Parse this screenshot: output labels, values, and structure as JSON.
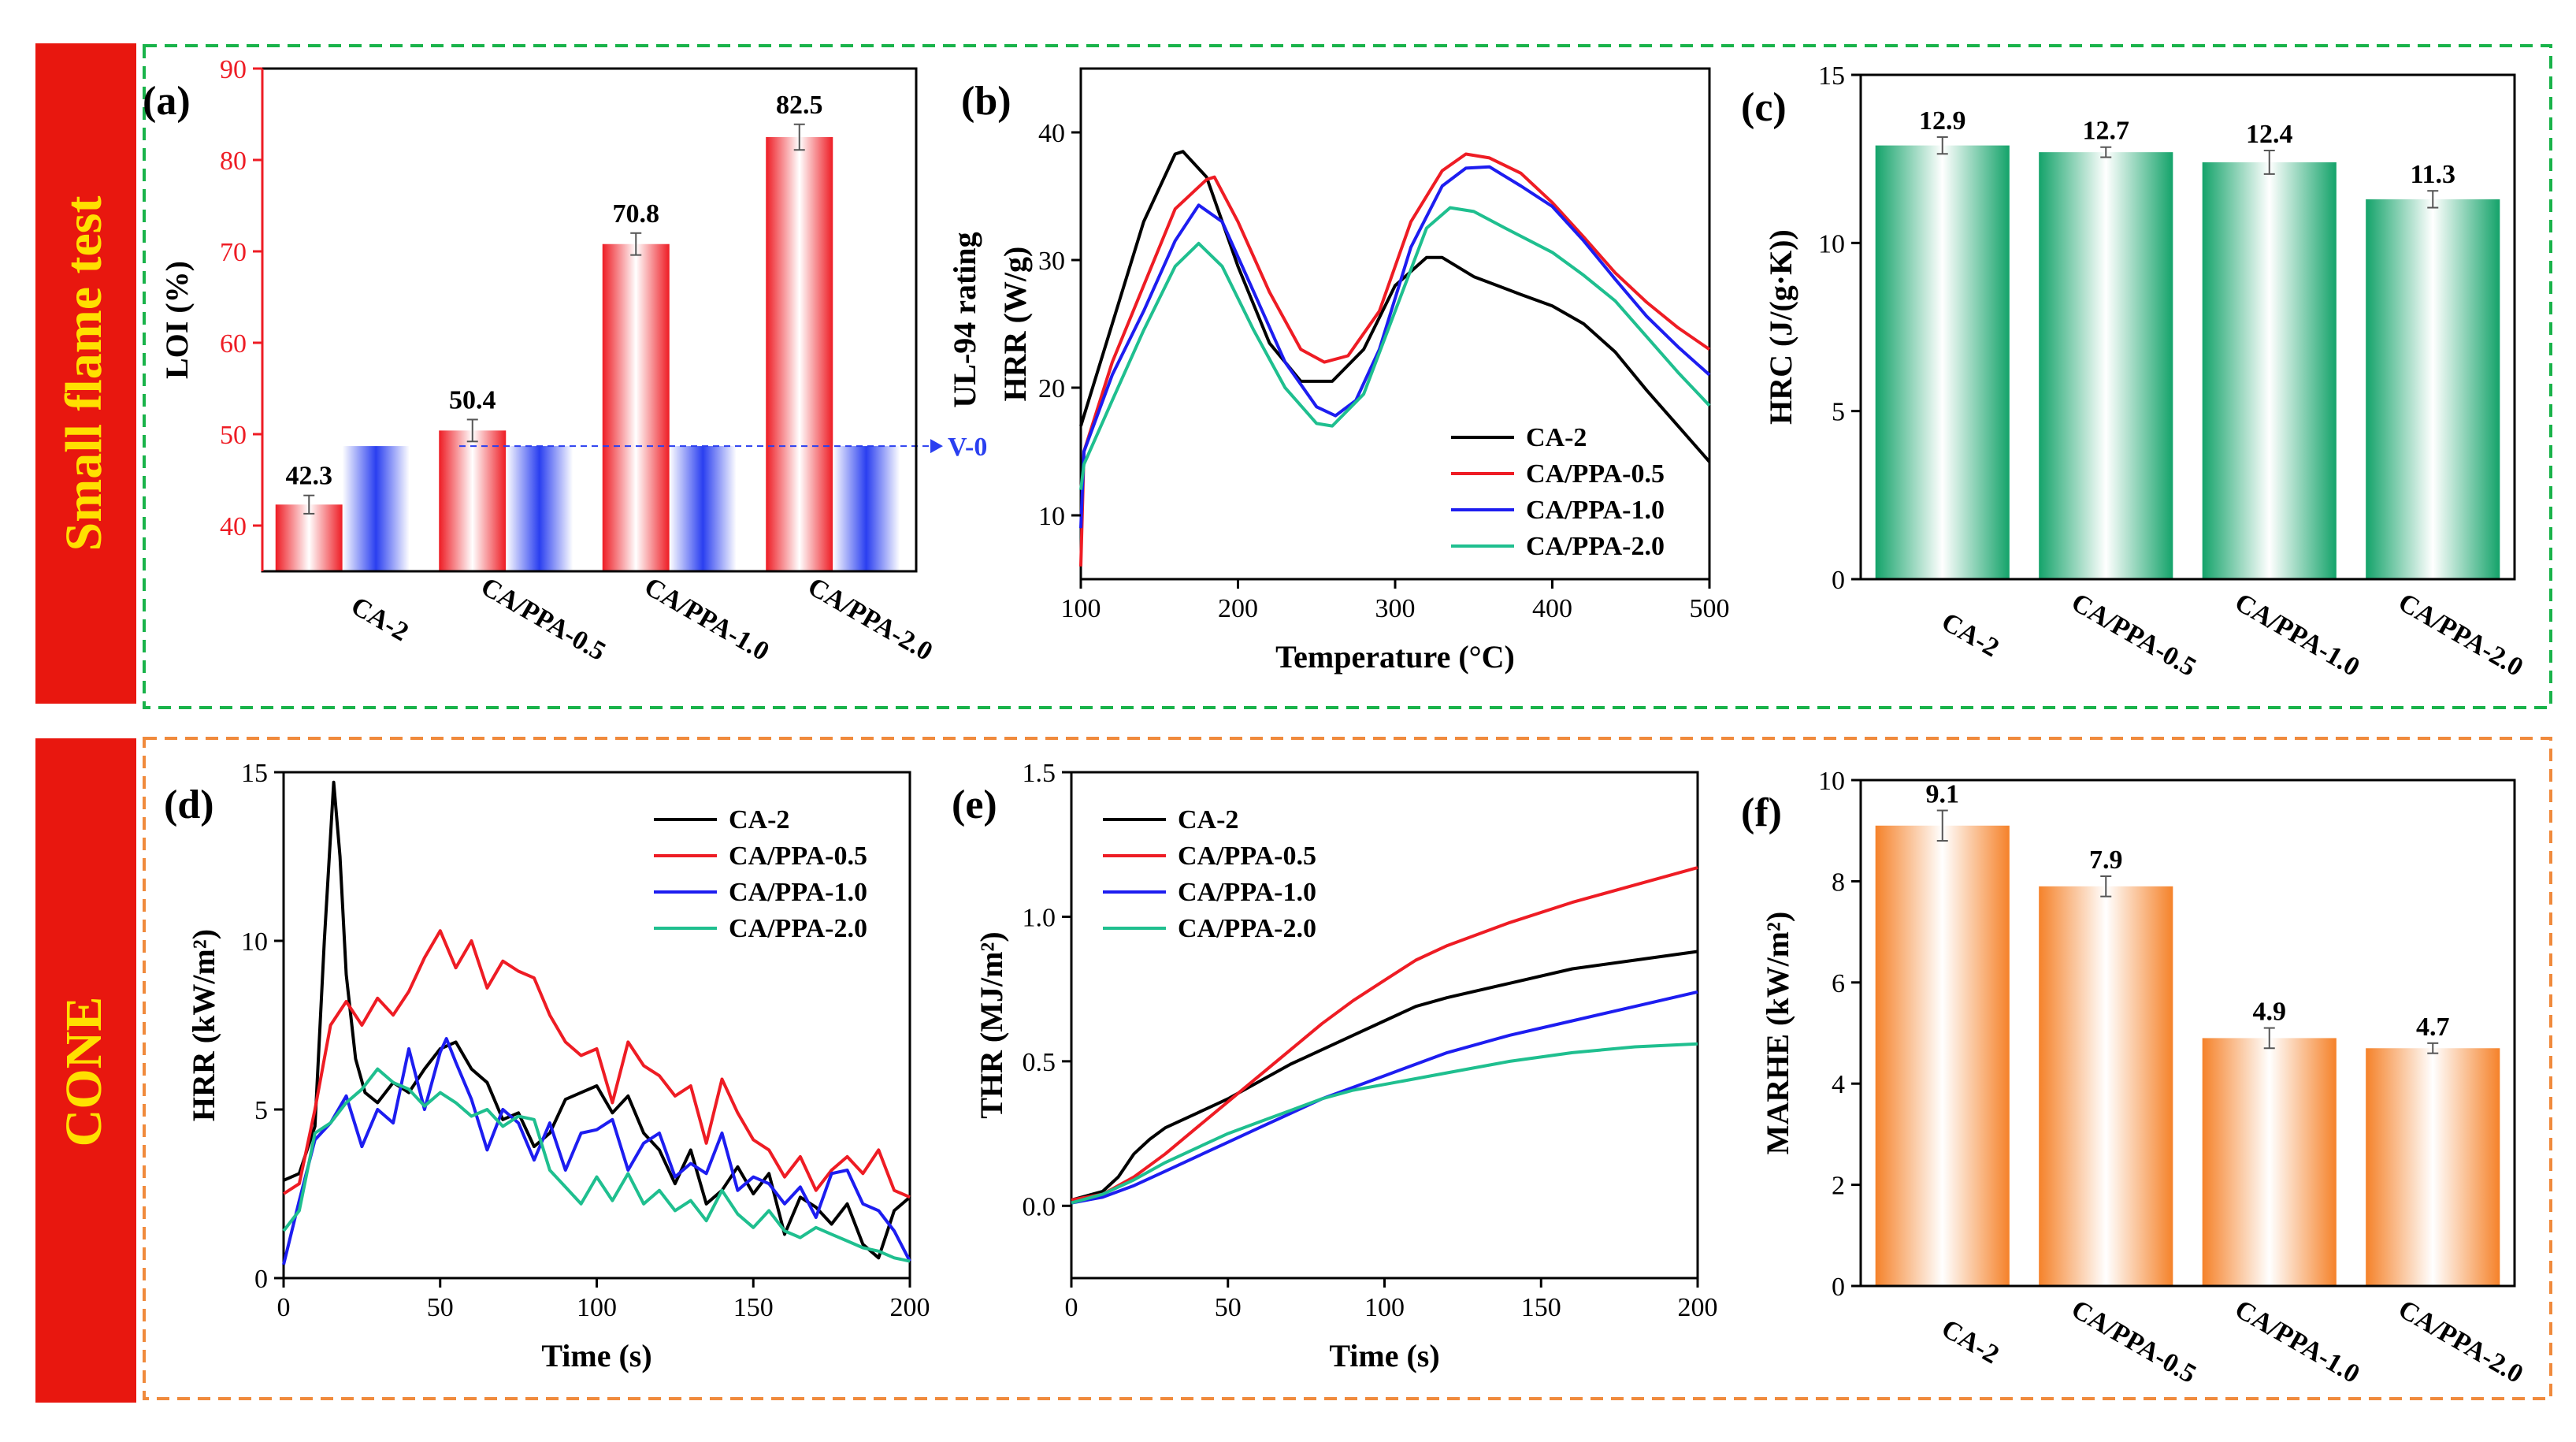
{
  "sections": [
    {
      "label": "Small flame test",
      "color": "#e8170f",
      "text_color": "#ffe000",
      "border_color": "#19b34a"
    },
    {
      "label": "CONE",
      "color": "#e8170f",
      "text_color": "#ffe000",
      "border_color": "#f08a3c"
    }
  ],
  "chart_data": [
    {
      "id": "a",
      "type": "bar",
      "panel_label": "(a)",
      "categories": [
        "CA-2",
        "CA/PPA-0.5",
        "CA/PPA-1.0",
        "CA/PPA-2.0"
      ],
      "series": [
        {
          "name": "LOI",
          "values": [
            42.3,
            50.4,
            70.8,
            82.5
          ],
          "errors": [
            1.0,
            1.2,
            1.2,
            1.4
          ],
          "color": "#ee1c24",
          "labels": [
            "42.3",
            "50.4",
            "70.8",
            "82.5"
          ]
        },
        {
          "name": "UL-94",
          "values": [
            48.7,
            48.7,
            48.7,
            48.7
          ],
          "color": "#2a3ff0"
        }
      ],
      "ylabel": "LOI (%)",
      "ylim": [
        35,
        90
      ],
      "yticks": [
        40,
        50,
        60,
        70,
        80,
        90
      ],
      "ytick_labels": [
        "40",
        "50",
        "60",
        "70",
        "80",
        "90"
      ],
      "y2label": "UL-94 rating",
      "annotation": {
        "text": "V-0",
        "value": 48.7
      },
      "axis_color": "#ee1c24"
    },
    {
      "id": "b",
      "type": "line",
      "panel_label": "(b)",
      "xlabel": "Temperature (°C)",
      "ylabel": "HRR (W/g)",
      "xlim": [
        100,
        500
      ],
      "ylim": [
        5,
        45
      ],
      "xticks": [
        100,
        200,
        300,
        400,
        500
      ],
      "xtick_labels": [
        "100",
        "200",
        "300",
        "400",
        "500"
      ],
      "yticks": [
        10,
        20,
        30,
        40
      ],
      "ytick_labels": [
        "10",
        "20",
        "30",
        "40"
      ],
      "legend_position": "bottom-right",
      "series": [
        {
          "name": "CA-2",
          "color": "#000000",
          "x": [
            100,
            120,
            140,
            160,
            165,
            180,
            200,
            220,
            240,
            260,
            280,
            300,
            320,
            330,
            350,
            380,
            400,
            420,
            440,
            460,
            480,
            500
          ],
          "y": [
            17,
            25,
            33,
            38.3,
            38.5,
            36.5,
            29.5,
            23.5,
            20.5,
            20.5,
            23,
            28,
            30.2,
            30.2,
            28.7,
            27.3,
            26.4,
            25.0,
            22.8,
            19.8,
            17.0,
            14.2
          ]
        },
        {
          "name": "CA/PPA-0.5",
          "color": "#ee1c24",
          "x": [
            100,
            102,
            120,
            140,
            160,
            180,
            185,
            200,
            220,
            240,
            255,
            270,
            290,
            310,
            330,
            345,
            360,
            380,
            400,
            420,
            440,
            460,
            480,
            500
          ],
          "y": [
            6,
            15,
            22,
            28,
            34,
            36.3,
            36.5,
            33,
            27.5,
            23,
            22.0,
            22.5,
            26,
            33,
            37,
            38.3,
            38,
            36.8,
            34.5,
            31.8,
            29.0,
            26.7,
            24.7,
            23.0
          ]
        },
        {
          "name": "CA/PPA-1.0",
          "color": "#1d1df0",
          "x": [
            100,
            102,
            120,
            140,
            160,
            175,
            190,
            210,
            230,
            250,
            262,
            275,
            290,
            310,
            330,
            345,
            360,
            380,
            400,
            420,
            440,
            460,
            480,
            500
          ],
          "y": [
            9,
            15,
            21,
            26,
            31.5,
            34.3,
            33,
            27.5,
            22,
            18.5,
            17.8,
            19,
            23,
            31,
            35.8,
            37.2,
            37.3,
            35.8,
            34.2,
            31.5,
            28.5,
            25.6,
            23.2,
            21.0
          ]
        },
        {
          "name": "CA/PPA-2.0",
          "color": "#1fbf8f",
          "x": [
            100,
            102,
            120,
            140,
            160,
            175,
            190,
            210,
            230,
            250,
            260,
            280,
            300,
            320,
            335,
            350,
            370,
            400,
            420,
            440,
            460,
            480,
            500
          ],
          "y": [
            12,
            14,
            19,
            24.5,
            29.5,
            31.3,
            29.5,
            24.5,
            20,
            17.2,
            17.0,
            19.5,
            26,
            32.5,
            34.1,
            33.8,
            32.5,
            30.6,
            28.8,
            26.8,
            24.0,
            21.2,
            18.6
          ]
        }
      ]
    },
    {
      "id": "c",
      "type": "bar",
      "panel_label": "(c)",
      "categories": [
        "CA-2",
        "CA/PPA-0.5",
        "CA/PPA-1.0",
        "CA/PPA-2.0"
      ],
      "values": [
        12.9,
        12.7,
        12.4,
        11.3
      ],
      "errors": [
        0.25,
        0.15,
        0.35,
        0.25
      ],
      "labels": [
        "12.9",
        "12.7",
        "12.4",
        "11.3"
      ],
      "ylabel": "HRC (J/(g·K))",
      "ylim": [
        0,
        15
      ],
      "yticks": [
        0,
        5,
        10,
        15
      ],
      "ytick_labels": [
        "0",
        "5",
        "10",
        "15"
      ],
      "color": "#14a36a"
    },
    {
      "id": "d",
      "type": "line",
      "panel_label": "(d)",
      "xlabel": "Time (s)",
      "ylabel": "HRR (kW/m²)",
      "xlim": [
        0,
        200
      ],
      "ylim": [
        0,
        15
      ],
      "xticks": [
        0,
        50,
        100,
        150,
        200
      ],
      "xtick_labels": [
        "0",
        "50",
        "100",
        "150",
        "200"
      ],
      "yticks": [
        0,
        5,
        10,
        15
      ],
      "ytick_labels": [
        "0",
        "5",
        "10",
        "15"
      ],
      "legend_position": "top-right",
      "series": [
        {
          "name": "CA-2",
          "color": "#000000",
          "x": [
            0,
            5,
            10,
            13,
            16,
            18,
            20,
            23,
            26,
            30,
            35,
            40,
            45,
            50,
            55,
            60,
            65,
            70,
            75,
            80,
            85,
            90,
            95,
            100,
            105,
            110,
            115,
            120,
            125,
            130,
            135,
            140,
            145,
            150,
            155,
            160,
            165,
            170,
            175,
            180,
            185,
            190,
            195,
            200
          ],
          "y": [
            2.9,
            3.1,
            4.5,
            10,
            14.7,
            12.5,
            9,
            6.5,
            5.5,
            5.2,
            5.8,
            5.5,
            6.2,
            6.8,
            7,
            6.2,
            5.8,
            4.7,
            4.9,
            3.9,
            4.3,
            5.3,
            5.5,
            5.7,
            4.9,
            5.4,
            4.3,
            3.8,
            2.8,
            3.8,
            2.2,
            2.6,
            3.3,
            2.5,
            3.1,
            1.3,
            2.4,
            2.1,
            1.6,
            2.2,
            1.0,
            0.6,
            2.0,
            2.4
          ]
        },
        {
          "name": "CA/PPA-0.5",
          "color": "#ee1c24",
          "x": [
            0,
            5,
            10,
            15,
            20,
            25,
            30,
            35,
            40,
            45,
            50,
            55,
            60,
            65,
            70,
            75,
            80,
            85,
            90,
            95,
            100,
            105,
            110,
            115,
            120,
            125,
            130,
            135,
            140,
            145,
            150,
            155,
            160,
            165,
            170,
            175,
            180,
            185,
            190,
            195,
            200
          ],
          "y": [
            2.5,
            2.8,
            5,
            7.5,
            8.2,
            7.5,
            8.3,
            7.8,
            8.5,
            9.5,
            10.3,
            9.2,
            10,
            8.6,
            9.4,
            9.1,
            8.9,
            7.8,
            7,
            6.6,
            6.8,
            5.2,
            7,
            6.3,
            6.0,
            5.4,
            5.7,
            4.0,
            5.9,
            4.9,
            4.1,
            3.8,
            3.0,
            3.6,
            2.6,
            3.2,
            3.6,
            3.1,
            3.8,
            2.6,
            2.4
          ]
        },
        {
          "name": "CA/PPA-1.0",
          "color": "#1d1df0",
          "x": [
            0,
            5,
            10,
            15,
            20,
            25,
            30,
            35,
            40,
            45,
            50,
            52,
            55,
            60,
            65,
            70,
            75,
            80,
            85,
            90,
            95,
            100,
            105,
            110,
            115,
            120,
            125,
            130,
            135,
            140,
            145,
            150,
            155,
            160,
            165,
            170,
            175,
            180,
            185,
            190,
            195,
            200
          ],
          "y": [
            0.4,
            2.3,
            4.1,
            4.6,
            5.4,
            3.9,
            5.0,
            4.6,
            6.8,
            5.0,
            6.7,
            7.1,
            6.4,
            5.3,
            3.8,
            5.0,
            4.6,
            3.5,
            4.6,
            3.2,
            4.3,
            4.4,
            4.7,
            3.2,
            4.0,
            4.3,
            3.0,
            3.4,
            3.1,
            4.3,
            2.6,
            3.0,
            2.8,
            2.2,
            2.7,
            1.8,
            3.1,
            3.2,
            2.2,
            2.0,
            1.4,
            0.5
          ]
        },
        {
          "name": "CA/PPA-2.0",
          "color": "#1fbf8f",
          "x": [
            0,
            5,
            10,
            15,
            20,
            25,
            30,
            35,
            40,
            45,
            50,
            55,
            60,
            65,
            70,
            75,
            80,
            85,
            90,
            95,
            100,
            105,
            110,
            115,
            120,
            125,
            130,
            135,
            140,
            145,
            150,
            155,
            160,
            165,
            170,
            175,
            180,
            185,
            190,
            195,
            200
          ],
          "y": [
            1.4,
            2.0,
            4.3,
            4.6,
            5.2,
            5.6,
            6.2,
            5.8,
            5.6,
            5.1,
            5.5,
            5.2,
            4.8,
            5.0,
            4.5,
            4.8,
            4.7,
            3.2,
            2.7,
            2.2,
            3.0,
            2.3,
            3.1,
            2.2,
            2.6,
            2.0,
            2.3,
            1.7,
            2.6,
            1.9,
            1.5,
            2.0,
            1.4,
            1.2,
            1.5,
            1.3,
            1.1,
            0.9,
            0.8,
            0.6,
            0.5
          ]
        }
      ]
    },
    {
      "id": "e",
      "type": "line",
      "panel_label": "(e)",
      "xlabel": "Time (s)",
      "ylabel": "THR (MJ/m²)",
      "xlim": [
        0,
        200
      ],
      "ylim": [
        -0.25,
        1.5
      ],
      "xticks": [
        0,
        50,
        100,
        150,
        200
      ],
      "xtick_labels": [
        "0",
        "50",
        "100",
        "150",
        "200"
      ],
      "yticks": [
        0.0,
        0.5,
        1.0,
        1.5
      ],
      "ytick_labels": [
        "0.0",
        "0.5",
        "1.0",
        "1.5"
      ],
      "legend_position": "top-left",
      "series": [
        {
          "name": "CA-2",
          "color": "#000000",
          "x": [
            0,
            10,
            15,
            20,
            25,
            30,
            40,
            50,
            60,
            70,
            80,
            90,
            100,
            110,
            120,
            140,
            160,
            180,
            200
          ],
          "y": [
            0.02,
            0.05,
            0.1,
            0.18,
            0.23,
            0.27,
            0.32,
            0.37,
            0.43,
            0.49,
            0.54,
            0.59,
            0.64,
            0.69,
            0.72,
            0.77,
            0.82,
            0.85,
            0.88
          ]
        },
        {
          "name": "CA/PPA-0.5",
          "color": "#ee1c24",
          "x": [
            0,
            10,
            20,
            30,
            40,
            50,
            60,
            70,
            80,
            90,
            100,
            110,
            120,
            140,
            160,
            180,
            200
          ],
          "y": [
            0.02,
            0.04,
            0.1,
            0.18,
            0.27,
            0.36,
            0.45,
            0.54,
            0.63,
            0.71,
            0.78,
            0.85,
            0.9,
            0.98,
            1.05,
            1.11,
            1.17
          ]
        },
        {
          "name": "CA/PPA-1.0",
          "color": "#1d1df0",
          "x": [
            0,
            10,
            20,
            30,
            40,
            50,
            60,
            70,
            80,
            90,
            100,
            110,
            120,
            140,
            160,
            180,
            200
          ],
          "y": [
            0.01,
            0.03,
            0.07,
            0.12,
            0.17,
            0.22,
            0.27,
            0.32,
            0.37,
            0.41,
            0.45,
            0.49,
            0.53,
            0.59,
            0.64,
            0.69,
            0.74
          ]
        },
        {
          "name": "CA/PPA-2.0",
          "color": "#1fbf8f",
          "x": [
            0,
            10,
            20,
            30,
            40,
            50,
            60,
            70,
            80,
            90,
            100,
            110,
            120,
            140,
            160,
            180,
            200
          ],
          "y": [
            0.01,
            0.04,
            0.09,
            0.15,
            0.2,
            0.25,
            0.29,
            0.33,
            0.37,
            0.4,
            0.42,
            0.44,
            0.46,
            0.5,
            0.53,
            0.55,
            0.56
          ]
        }
      ]
    },
    {
      "id": "f",
      "type": "bar",
      "panel_label": "(f)",
      "categories": [
        "CA-2",
        "CA/PPA-0.5",
        "CA/PPA-1.0",
        "CA/PPA-2.0"
      ],
      "values": [
        9.1,
        7.9,
        4.9,
        4.7
      ],
      "errors": [
        0.3,
        0.2,
        0.2,
        0.1
      ],
      "labels": [
        "9.1",
        "7.9",
        "4.9",
        "4.7"
      ],
      "ylabel": "MARHE (kW/m²)",
      "ylim": [
        0,
        10
      ],
      "yticks": [
        0,
        2,
        4,
        6,
        8,
        10
      ],
      "ytick_labels": [
        "0",
        "2",
        "4",
        "6",
        "8",
        "10"
      ],
      "color": "#f5822a"
    }
  ]
}
